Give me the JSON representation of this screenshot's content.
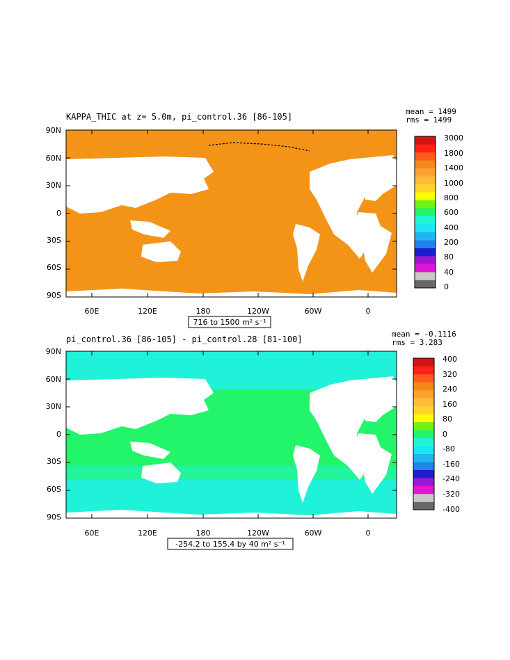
{
  "panels": [
    {
      "title": "KAPPA_THIC at z=   5.0m, pi_control.36 [86-105]",
      "stats": [
        "mean = 1499",
        "rms = 1499"
      ],
      "y_ticks": [
        "90N",
        "60N",
        "30N",
        "0",
        "30S",
        "60S",
        "90S"
      ],
      "x_ticks": [
        "60E",
        "120E",
        "180",
        "120W",
        "60W",
        "0"
      ],
      "range_label": "716 to 1500 m² s⁻¹",
      "ocean_color": "#f39419",
      "colorbar_labels": [
        "3000",
        "1800",
        "1400",
        "1000",
        "800",
        "600",
        "400",
        "200",
        "80",
        "40",
        "0"
      ]
    },
    {
      "title": "pi_control.36 [86-105] - pi_control.28 [81-100]",
      "stats": [
        "mean = -0.1116",
        "rms = 3.283"
      ],
      "y_ticks": [
        "90N",
        "60N",
        "30N",
        "0",
        "30S",
        "60S",
        "90S"
      ],
      "x_ticks": [
        "60E",
        "120E",
        "180",
        "120W",
        "60W",
        "0"
      ],
      "range_label": "-254.2 to 155.4 by 40 m² s⁻¹",
      "ocean_color": "#22f56a",
      "ocean_color_secondary": "#1ff2d8",
      "colorbar_labels": [
        "400",
        "320",
        "240",
        "160",
        "80",
        "0",
        "-80",
        "-160",
        "-240",
        "-320",
        "-400"
      ]
    }
  ],
  "colorbar_colors": [
    "#686868",
    "#c9c9c9",
    "#e116d2",
    "#9a18d0",
    "#1c1cd0",
    "#1d86e9",
    "#20b6f2",
    "#1ee6f1",
    "#1ff4d6",
    "#22f56a",
    "#6df213",
    "#ffff00",
    "#ffd42a",
    "#ffbc37",
    "#fba12f",
    "#f6871a",
    "#ff5b1a",
    "#ff2218",
    "#d41414"
  ]
}
